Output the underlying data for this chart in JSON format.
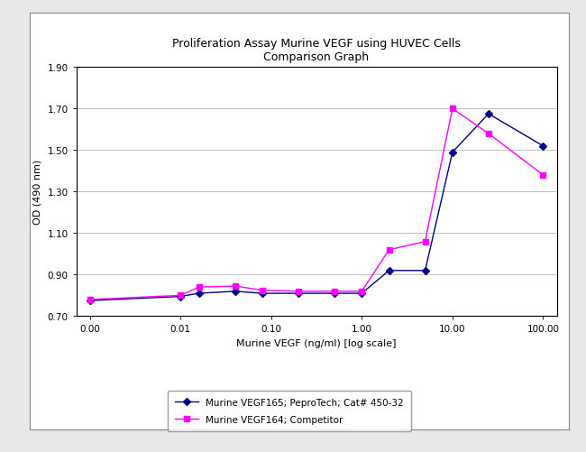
{
  "title_line1": "Proliferation Assay Murine VEGF using HUVEC Cells",
  "title_line2": "Comparison Graph",
  "xlabel": "Murine VEGF (ng/ml) [log scale]",
  "ylabel": "OD (490 nm)",
  "ylim": [
    0.7,
    1.9
  ],
  "yticks": [
    0.7,
    0.9,
    1.1,
    1.3,
    1.5,
    1.7,
    1.9
  ],
  "xtick_positions": [
    0,
    1,
    2,
    3,
    4,
    5
  ],
  "xtick_labels": [
    "0.00",
    "0.01",
    "0.10",
    "1.00",
    "10.00",
    "100.00"
  ],
  "series1": {
    "label": "Murine VEGF165; PeproTech; Cat# 450-32",
    "color": "#00008B",
    "marker": "D",
    "markersize": 4,
    "x": [
      0,
      1,
      1.204,
      1.602,
      1.903,
      2.301,
      2.699,
      3.0,
      3.301,
      3.699,
      4.0,
      4.398,
      5.0
    ],
    "y": [
      0.775,
      0.795,
      0.81,
      0.82,
      0.81,
      0.81,
      0.81,
      0.81,
      0.92,
      0.92,
      1.49,
      1.675,
      1.52
    ]
  },
  "series2": {
    "label": "Murine VEGF164; Competitor",
    "color": "#FF00FF",
    "marker": "s",
    "markersize": 4,
    "x": [
      0,
      1,
      1.204,
      1.602,
      1.903,
      2.301,
      2.699,
      3.0,
      3.301,
      3.699,
      4.0,
      4.398,
      5.0
    ],
    "y": [
      0.78,
      0.8,
      0.84,
      0.845,
      0.825,
      0.82,
      0.82,
      0.82,
      1.02,
      1.06,
      1.7,
      1.58,
      1.38
    ]
  },
  "background_color": "#f0f0f0",
  "plot_bg_color": "#ffffff",
  "panel_bg_color": "#ffffff",
  "grid_color": "#aaaaaa",
  "title_fontsize": 9,
  "label_fontsize": 8,
  "tick_fontsize": 7.5,
  "legend_fontsize": 7.5
}
